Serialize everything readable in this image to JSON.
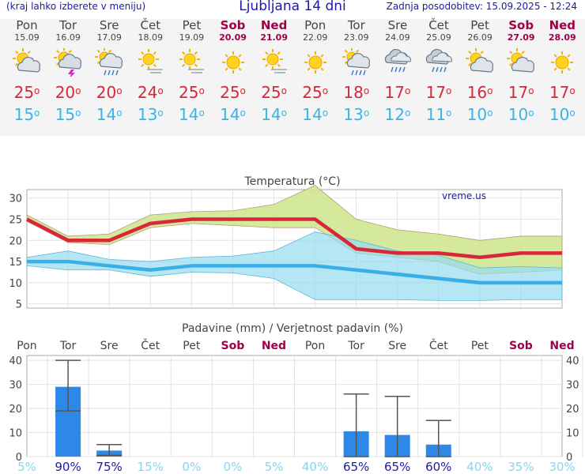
{
  "header": {
    "menu_hint": "(kraj lahko izberete v meniju)",
    "title": "Ljubljana 14 dni",
    "updated": "Zadnja posodobitev: 15.09.2025 - 12:24"
  },
  "days": [
    {
      "name": "Pon",
      "date": "15.09",
      "weekend": false,
      "icon": "partly-cloudy-icon",
      "tmax": "25",
      "tmin": "15"
    },
    {
      "name": "Tor",
      "date": "16.09",
      "weekend": false,
      "icon": "thunderstorm-sun-icon",
      "tmax": "20",
      "tmin": "15"
    },
    {
      "name": "Sre",
      "date": "17.09",
      "weekend": false,
      "icon": "sun-cloud-rain-icon",
      "tmax": "20",
      "tmin": "14"
    },
    {
      "name": "Čet",
      "date": "18.09",
      "weekend": false,
      "icon": "sunny-haze-icon",
      "tmax": "24",
      "tmin": "13"
    },
    {
      "name": "Pet",
      "date": "19.09",
      "weekend": false,
      "icon": "sunny-haze-icon",
      "tmax": "25",
      "tmin": "14"
    },
    {
      "name": "Sob",
      "date": "20.09",
      "weekend": true,
      "icon": "sunny-icon",
      "tmax": "25",
      "tmin": "14"
    },
    {
      "name": "Ned",
      "date": "21.09",
      "weekend": true,
      "icon": "sunny-haze-icon",
      "tmax": "25",
      "tmin": "14"
    },
    {
      "name": "Pon",
      "date": "22.09",
      "weekend": false,
      "icon": "sunny-icon",
      "tmax": "25",
      "tmin": "14"
    },
    {
      "name": "Tor",
      "date": "23.09",
      "weekend": false,
      "icon": "sun-cloud-rain-icon",
      "tmax": "18",
      "tmin": "13"
    },
    {
      "name": "Sre",
      "date": "24.09",
      "weekend": false,
      "icon": "cloud-rain-icon",
      "tmax": "17",
      "tmin": "12"
    },
    {
      "name": "Čet",
      "date": "25.09",
      "weekend": false,
      "icon": "cloud-rain-icon",
      "tmax": "17",
      "tmin": "11"
    },
    {
      "name": "Pet",
      "date": "26.09",
      "weekend": false,
      "icon": "partly-cloudy-icon",
      "tmax": "16",
      "tmin": "10"
    },
    {
      "name": "Sob",
      "date": "27.09",
      "weekend": true,
      "icon": "partly-cloudy-icon",
      "tmax": "17",
      "tmin": "10"
    },
    {
      "name": "Ned",
      "date": "28.09",
      "weekend": true,
      "icon": "sunny-icon",
      "tmax": "17",
      "tmin": "10"
    }
  ],
  "colors": {
    "title_blue": "#1a1aaa",
    "max_temp": "#d8273a",
    "min_temp": "#38b4e8",
    "weekend": "#a0004a",
    "max_band": "#cce58a",
    "min_band": "#96dcef",
    "overlap": "#8cc88c",
    "min_line": "#3aaee6",
    "precip_bar": "#2e88e8"
  },
  "chart_data": [
    {
      "type": "line",
      "title": "Temperatura (°C)",
      "watermark": "vreme.us",
      "ylim": [
        4,
        32
      ],
      "yticks": [
        5,
        10,
        15,
        20,
        25,
        30
      ],
      "grid": true,
      "series": [
        {
          "values": [
            25,
            20,
            20,
            24,
            25,
            25,
            25,
            25,
            18,
            17,
            17,
            16,
            17,
            17
          ]
        },
        {
          "values": [
            26,
            21,
            21.5,
            26,
            26.8,
            27,
            28.5,
            33,
            25,
            22.5,
            21.5,
            20,
            21,
            21
          ]
        },
        {
          "values": [
            24.5,
            19.5,
            19,
            23,
            24,
            23.5,
            23,
            23,
            17,
            16,
            15,
            12,
            12.5,
            13
          ]
        },
        {
          "values": [
            15,
            15,
            14,
            13,
            14,
            14,
            14,
            14,
            13,
            12,
            11,
            10,
            10,
            10
          ]
        },
        {
          "values": [
            16,
            17.5,
            15.5,
            15,
            16,
            16.3,
            17.5,
            22,
            20,
            17.5,
            16.5,
            13.5,
            13.8,
            13.5
          ]
        },
        {
          "values": [
            14,
            13,
            13,
            11.5,
            12.5,
            12.3,
            11,
            6,
            6,
            6,
            5.8,
            5.8,
            6,
            6
          ]
        }
      ]
    },
    {
      "type": "bar",
      "title": "Padavine (mm) / Verjetnost padavin (%)",
      "categories": [
        "Pon",
        "Tor",
        "Sre",
        "Čet",
        "Pet",
        "Sob",
        "Ned",
        "Pon",
        "Tor",
        "Sre",
        "Čet",
        "Pet",
        "Sob",
        "Ned"
      ],
      "weekend": [
        false,
        false,
        false,
        false,
        false,
        true,
        true,
        false,
        false,
        false,
        false,
        false,
        true,
        true
      ],
      "ylim": [
        0,
        42
      ],
      "yticks": [
        0,
        10,
        20,
        30,
        40
      ],
      "values": [
        0,
        29,
        2.5,
        0,
        0,
        0,
        0,
        0,
        10.5,
        9,
        5,
        0,
        0,
        0
      ],
      "error_low": [
        0,
        19,
        0.5,
        0,
        0,
        0,
        0,
        0,
        0,
        0,
        0,
        0,
        0,
        0
      ],
      "error_high": [
        0,
        40,
        5,
        0,
        0,
        0,
        0,
        0,
        26,
        25,
        15,
        0,
        0,
        0
      ],
      "probability": [
        "5%",
        "90%",
        "75%",
        "15%",
        "0%",
        "0%",
        "5%",
        "40%",
        "65%",
        "65%",
        "60%",
        "40%",
        "35%",
        "30%"
      ],
      "probability_strong": [
        false,
        true,
        true,
        false,
        false,
        false,
        false,
        false,
        true,
        true,
        true,
        false,
        false,
        false
      ]
    }
  ]
}
